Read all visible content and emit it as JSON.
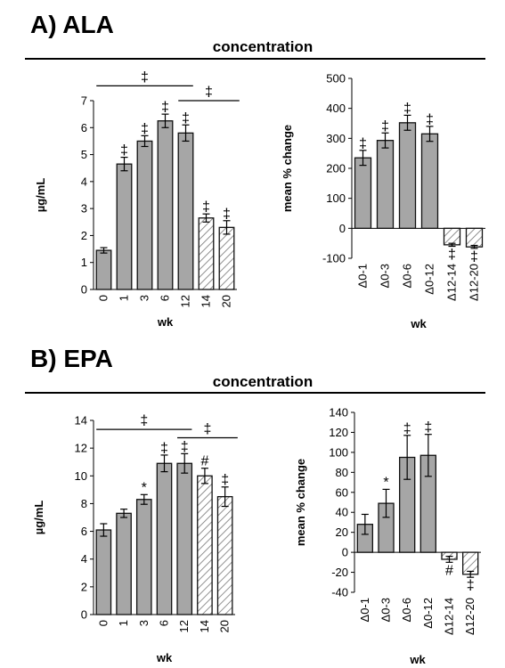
{
  "panels": [
    {
      "title": "A) ALA",
      "section_title": "concentration",
      "chart_data": [
        {
          "type": "bar",
          "ylabel": "µg/mL",
          "xlabel": "wk",
          "ylim": [
            0,
            7
          ],
          "yticks": [
            0,
            1,
            2,
            3,
            4,
            5,
            6,
            7
          ],
          "categories": [
            "0",
            "1",
            "3",
            "6",
            "12",
            "14",
            "20"
          ],
          "values": [
            1.45,
            4.65,
            5.5,
            6.25,
            5.8,
            2.65,
            2.3
          ],
          "errors": [
            0.1,
            0.25,
            0.2,
            0.25,
            0.3,
            0.15,
            0.25
          ],
          "hatched": [
            false,
            false,
            false,
            false,
            false,
            true,
            true
          ],
          "annotations": [
            "",
            "‡",
            "‡",
            "‡",
            "‡",
            "‡",
            "‡"
          ],
          "brackets": [
            {
              "from": "0",
              "to": "12",
              "label": "‡",
              "y": 7.55
            },
            {
              "from": "12",
              "to": "20",
              "label": "‡",
              "y": 7.0
            }
          ]
        },
        {
          "type": "bar",
          "ylabel": "mean % change",
          "xlabel": "wk",
          "ylim": [
            -100,
            500
          ],
          "yticks": [
            -100,
            0,
            100,
            200,
            300,
            400,
            500
          ],
          "categories": [
            "Δ0-1",
            "Δ0-3",
            "Δ0-6",
            "Δ0-12",
            "Δ12-14",
            "Δ12-20"
          ],
          "values": [
            235,
            293,
            352,
            315,
            -55,
            -62
          ],
          "errors": [
            25,
            25,
            25,
            25,
            5,
            5
          ],
          "hatched": [
            false,
            false,
            false,
            false,
            true,
            true
          ],
          "annotations": [
            "‡",
            "‡",
            "‡",
            "‡",
            "‡",
            "‡"
          ]
        }
      ]
    },
    {
      "title": "B) EPA",
      "section_title": "concentration",
      "chart_data": [
        {
          "type": "bar",
          "ylabel": "µg/mL",
          "xlabel": "wk",
          "ylim": [
            0,
            14
          ],
          "yticks": [
            0,
            2,
            4,
            6,
            8,
            10,
            12,
            14
          ],
          "categories": [
            "0",
            "1",
            "3",
            "6",
            "12",
            "14",
            "20"
          ],
          "values": [
            6.1,
            7.3,
            8.3,
            10.9,
            10.9,
            10.0,
            8.5
          ],
          "errors": [
            0.45,
            0.3,
            0.35,
            0.6,
            0.7,
            0.55,
            0.7
          ],
          "hatched": [
            false,
            false,
            false,
            false,
            false,
            true,
            true
          ],
          "annotations": [
            "",
            "",
            "*",
            "‡",
            "‡",
            "#",
            "‡"
          ],
          "brackets": [
            {
              "from": "0",
              "to": "12",
              "label": "‡",
              "y": 13.35
            },
            {
              "from": "12",
              "to": "20",
              "label": "‡",
              "y": 12.75
            }
          ]
        },
        {
          "type": "bar",
          "ylabel": "mean % change",
          "xlabel": "wk",
          "ylim": [
            -40,
            140
          ],
          "yticks": [
            -40,
            -20,
            0,
            20,
            40,
            60,
            80,
            100,
            120,
            140
          ],
          "categories": [
            "Δ0-1",
            "Δ0-3",
            "Δ0-6",
            "Δ0-12",
            "Δ12-14",
            "Δ12-20"
          ],
          "values": [
            28,
            49,
            95,
            97,
            -7,
            -22
          ],
          "errors": [
            10,
            14,
            22,
            21,
            3,
            3
          ],
          "hatched": [
            false,
            false,
            false,
            false,
            true,
            true
          ],
          "annotations": [
            "",
            "*",
            "‡",
            "‡",
            "#",
            "‡"
          ]
        }
      ]
    }
  ]
}
